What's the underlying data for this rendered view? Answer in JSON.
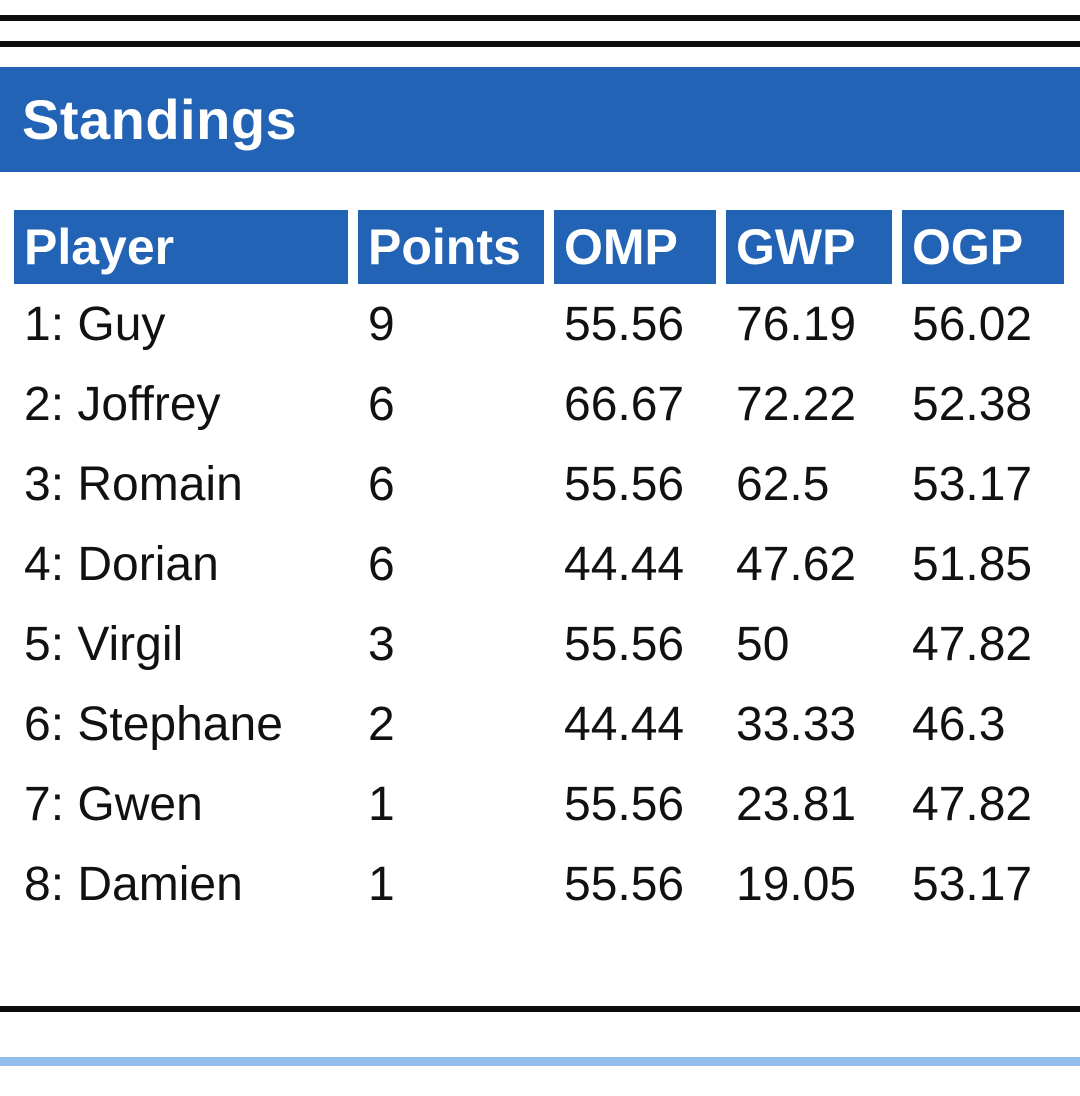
{
  "banner": {
    "title": "Standings"
  },
  "colors": {
    "primary_blue": "#2263b5",
    "light_blue": "#91bde9",
    "line_black": "#0d0d0d",
    "text_black": "#111111"
  },
  "table": {
    "columns": [
      {
        "key": "player",
        "label": "Player"
      },
      {
        "key": "points",
        "label": "Points"
      },
      {
        "key": "omp",
        "label": "OMP"
      },
      {
        "key": "gwp",
        "label": "GWP"
      },
      {
        "key": "ogp",
        "label": "OGP"
      }
    ],
    "rows": [
      {
        "player": "1: Guy",
        "points": "9",
        "omp": "55.56",
        "gwp": "76.19",
        "ogp": "56.02"
      },
      {
        "player": "2: Joffrey",
        "points": "6",
        "omp": "66.67",
        "gwp": "72.22",
        "ogp": "52.38"
      },
      {
        "player": "3: Romain",
        "points": "6",
        "omp": "55.56",
        "gwp": "62.5",
        "ogp": "53.17"
      },
      {
        "player": "4: Dorian",
        "points": "6",
        "omp": "44.44",
        "gwp": "47.62",
        "ogp": "51.85"
      },
      {
        "player": "5: Virgil",
        "points": "3",
        "omp": "55.56",
        "gwp": "50",
        "ogp": "47.82"
      },
      {
        "player": "6: Stephane",
        "points": "2",
        "omp": "44.44",
        "gwp": "33.33",
        "ogp": "46.3"
      },
      {
        "player": "7: Gwen",
        "points": "1",
        "omp": "55.56",
        "gwp": "23.81",
        "ogp": "47.82"
      },
      {
        "player": "8: Damien",
        "points": "1",
        "omp": "55.56",
        "gwp": "19.05",
        "ogp": "53.17"
      }
    ]
  }
}
